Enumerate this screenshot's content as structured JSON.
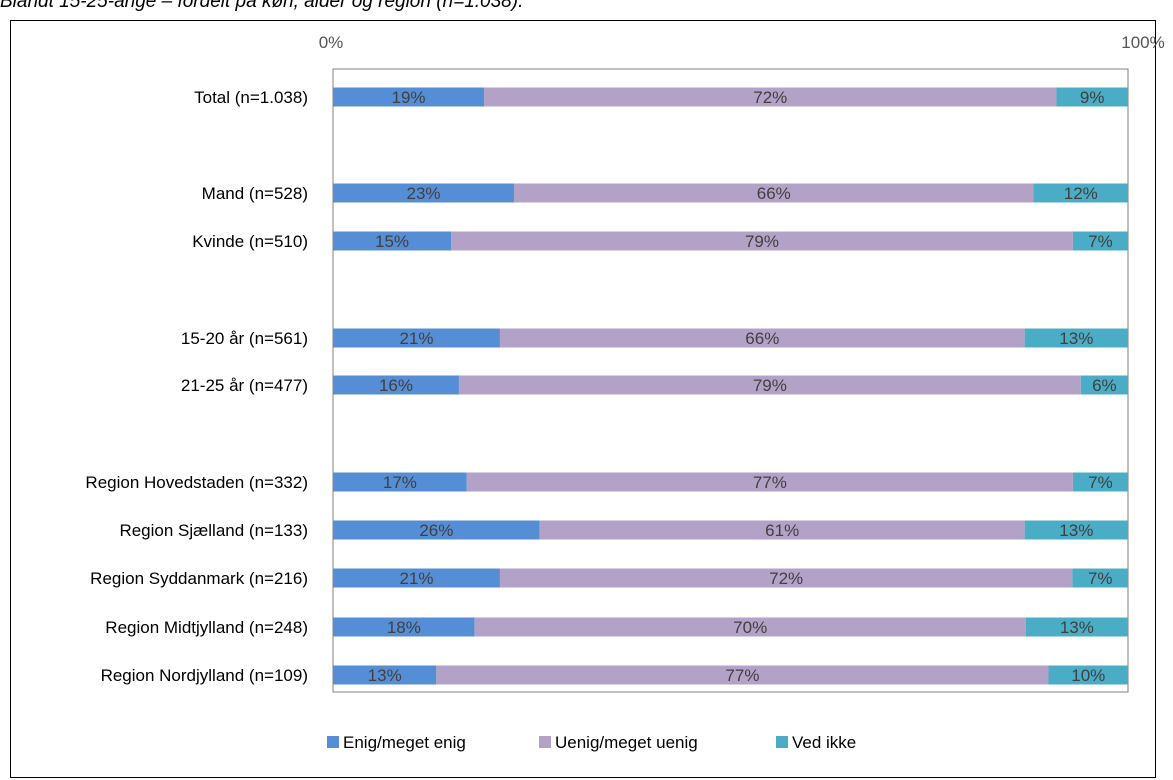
{
  "caption": "Blandt 15-25-årige – fordelt på køn, alder og region (n=1.038).",
  "colors": {
    "enig": "#558ED5",
    "uenig": "#B3A2C7",
    "vedikke": "#4BACC6",
    "plot_border": "#808080"
  },
  "chart_data": {
    "type": "bar",
    "orientation": "horizontal",
    "stacked": "percent",
    "title": "",
    "xlabel": "",
    "ylabel": "",
    "xlim": [
      0,
      100
    ],
    "x_ticks": [
      "0%",
      "100%"
    ],
    "grid": false,
    "legend_position": "bottom",
    "categories": [
      "Total (n=1.038)",
      "Mand (n=528)",
      "Kvinde (n=510)",
      "15-20 år (n=561)",
      "21-25 år (n=477)",
      "Region Hovedstaden (n=332)",
      "Region Sjælland (n=133)",
      "Region Syddanmark (n=216)",
      "Region Midtjylland (n=248)",
      "Region Nordjylland (n=109)"
    ],
    "series": [
      {
        "name": "Enig/meget enig",
        "values": [
          19,
          23,
          15,
          21,
          16,
          17,
          26,
          21,
          18,
          13
        ]
      },
      {
        "name": "Uenig/meget uenig",
        "values": [
          72,
          66,
          79,
          66,
          79,
          77,
          61,
          72,
          70,
          77
        ]
      },
      {
        "name": "Ved ikke",
        "values": [
          9,
          12,
          7,
          13,
          6,
          7,
          13,
          7,
          13,
          10
        ]
      }
    ]
  }
}
